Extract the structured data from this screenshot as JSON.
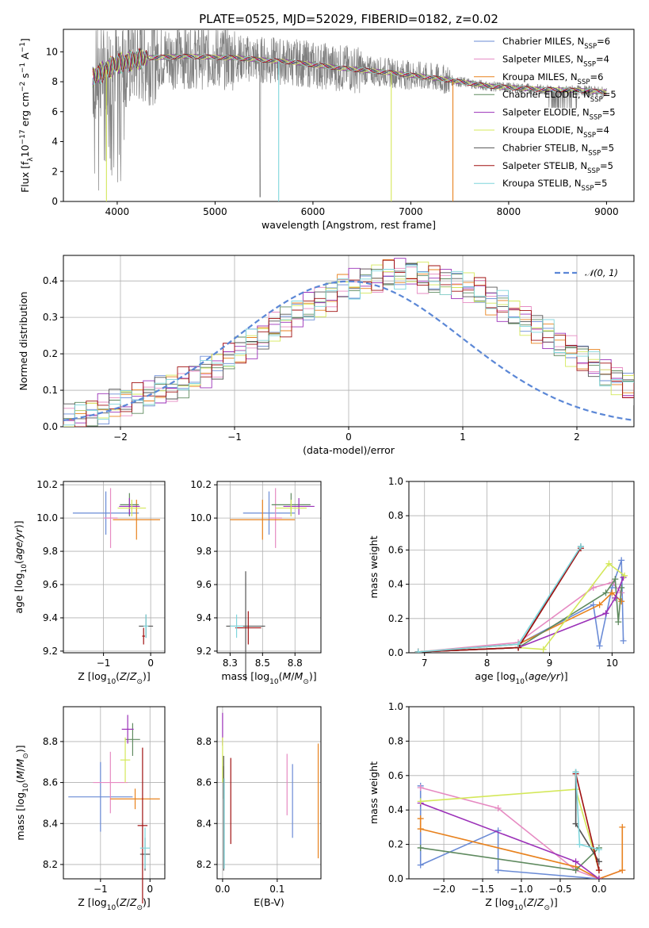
{
  "figure_title": "PLATE=0525, MJD=52029, FIBERID=0182, z=0.02",
  "colors": {
    "Chabrier MILES": "#6a8bd6",
    "Salpeter MILES": "#e68ac2",
    "Kroupa MILES": "#e8821e",
    "Chabrier ELODIE": "#5f8a5f",
    "Salpeter ELODIE": "#9b30b8",
    "Kroupa ELODIE": "#d4e85a",
    "Chabrier STELIB": "#555555",
    "Salpeter STELIB": "#a01010",
    "Kroupa STELIB": "#7fd6dc",
    "observed": "#808080",
    "gaussian": "#5b87d6"
  },
  "chart_data": [
    {
      "id": "spectrum",
      "type": "line",
      "xlabel": "wavelength [Angstrom, rest frame]",
      "ylabel": "Flux [f_λ10^-17 erg cm^-2 s^-1 A^-1]",
      "xlim": [
        3450,
        9280
      ],
      "ylim": [
        0,
        11.5
      ],
      "xticks": [
        4000,
        5000,
        6000,
        7000,
        8000,
        9000
      ],
      "yticks": [
        0,
        2,
        4,
        6,
        8,
        10
      ],
      "legend_position": "upper-right",
      "legend": [
        {
          "name": "Chabrier MILES, N_SSP=6",
          "pre": "Chabrier MILES, N",
          "sub": "SSP",
          "post": "=6"
        },
        {
          "name": "Salpeter MILES, N_SSP=4",
          "pre": "Salpeter MILES, N",
          "sub": "SSP",
          "post": "=4"
        },
        {
          "name": "Kroupa MILES, N_SSP=6",
          "pre": "Kroupa MILES, N",
          "sub": "SSP",
          "post": "=6"
        },
        {
          "name": "Chabrier ELODIE, N_SSP=5",
          "pre": "Chabrier ELODIE, N",
          "sub": "SSP",
          "post": "=5"
        },
        {
          "name": "Salpeter ELODIE, N_SSP=5",
          "pre": "Salpeter ELODIE, N",
          "sub": "SSP",
          "post": "=5"
        },
        {
          "name": "Kroupa ELODIE, N_SSP=4",
          "pre": "Kroupa ELODIE, N",
          "sub": "SSP",
          "post": "=4"
        },
        {
          "name": "Chabrier STELIB, N_SSP=5",
          "pre": "Chabrier STELIB, N",
          "sub": "SSP",
          "post": "=5"
        },
        {
          "name": "Salpeter STELIB, N_SSP=5",
          "pre": "Salpeter STELIB, N",
          "sub": "SSP",
          "post": "=5"
        },
        {
          "name": "Kroupa STELIB, N_SSP=5",
          "pre": "Kroupa STELIB, N",
          "sub": "SSP",
          "post": "=5"
        }
      ],
      "observed_continuum": [
        [
          3750,
          8.3
        ],
        [
          4000,
          9.2
        ],
        [
          4300,
          9.6
        ],
        [
          4700,
          9.7
        ],
        [
          5200,
          9.6
        ],
        [
          5800,
          9.3
        ],
        [
          6300,
          8.9
        ],
        [
          6800,
          8.6
        ],
        [
          7300,
          8.2
        ],
        [
          7800,
          7.7
        ],
        [
          8300,
          7.5
        ],
        [
          8800,
          7.4
        ],
        [
          9000,
          7.3
        ]
      ],
      "model_dropouts": {
        "Kroupa STELIB": 5650,
        "Kroupa ELODIE": 6800,
        "Kroupa MILES": 7430,
        "Kroupa ELODIE blue": 3890
      }
    },
    {
      "id": "residuals",
      "type": "bar",
      "xlabel": "(data-model)/error",
      "ylabel": "Normed distribution",
      "xlim": [
        -2.5,
        2.5
      ],
      "ylim": [
        0,
        0.47
      ],
      "xticks": [
        -2,
        -1,
        0,
        1,
        2
      ],
      "yticks": [
        0.0,
        0.1,
        0.2,
        0.3,
        0.4
      ],
      "legend_position": "upper-right",
      "legend": [
        {
          "name": "N(0,1)",
          "text": "𝒩(0, 1)"
        }
      ],
      "bin_width": 0.1,
      "bin_start": -2.5,
      "base_values": [
        0.02,
        0.03,
        0.04,
        0.05,
        0.06,
        0.07,
        0.08,
        0.09,
        0.1,
        0.11,
        0.12,
        0.14,
        0.15,
        0.17,
        0.19,
        0.21,
        0.23,
        0.25,
        0.27,
        0.29,
        0.31,
        0.33,
        0.34,
        0.36,
        0.38,
        0.39,
        0.4,
        0.41,
        0.42,
        0.42,
        0.42,
        0.41,
        0.4,
        0.4,
        0.39,
        0.38,
        0.37,
        0.35,
        0.33,
        0.31,
        0.29,
        0.27,
        0.25,
        0.23,
        0.21,
        0.19,
        0.17,
        0.15,
        0.13,
        0.11,
        0.1,
        0.09,
        0.08,
        0.07,
        0.06,
        0.055,
        0.05,
        0.045,
        0.04,
        0.035,
        0.03,
        0.025,
        0.02,
        0.015,
        0.01
      ]
    },
    {
      "id": "age-vs-Z",
      "type": "scatter",
      "xlabel": "Z [log10(Z/Z⊙)]",
      "ylabel": "age [log10(age/yr)]",
      "xlim": [
        -1.85,
        0.3
      ],
      "ylim": [
        9.19,
        10.22
      ],
      "xticks": [
        -1,
        0
      ],
      "yticks": [
        9.2,
        9.4,
        9.6,
        9.8,
        10.0,
        10.2
      ],
      "points": [
        {
          "series": "Chabrier MILES",
          "x": -0.95,
          "y": 10.03,
          "xerr": 0.7,
          "yerr": 0.13
        },
        {
          "series": "Salpeter MILES",
          "x": -0.85,
          "y": 10.0,
          "xerr": 0.15,
          "yerr": 0.18
        },
        {
          "series": "Kroupa MILES",
          "x": -0.3,
          "y": 9.99,
          "xerr": 0.5,
          "yerr": 0.12
        },
        {
          "series": "Chabrier ELODIE",
          "x": -0.45,
          "y": 10.08,
          "xerr": 0.2,
          "yerr": 0.07
        },
        {
          "series": "Salpeter ELODIE",
          "x": -0.45,
          "y": 10.07,
          "xerr": 0.22,
          "yerr": 0.05
        },
        {
          "series": "Kroupa ELODIE",
          "x": -0.4,
          "y": 10.06,
          "xerr": 0.3,
          "yerr": 0.05
        },
        {
          "series": "Chabrier STELIB",
          "x": -0.1,
          "y": 9.35,
          "xerr": 0.15,
          "yerr": 0.07
        },
        {
          "series": "Salpeter STELIB",
          "x": -0.15,
          "y": 9.29,
          "xerr": 0.03,
          "yerr": 0.05
        },
        {
          "series": "Kroupa STELIB",
          "x": -0.1,
          "y": 9.35,
          "xerr": 0.05,
          "yerr": 0.07
        }
      ]
    },
    {
      "id": "age-vs-mass",
      "type": "scatter",
      "xlabel": "mass [log10(M/M⊙)]",
      "ylabel": "",
      "xlim": [
        8.15,
        8.95
      ],
      "ylim": [
        9.19,
        10.22
      ],
      "xticks": [
        8.25,
        8.5,
        8.75
      ],
      "yticks": [
        9.2,
        9.4,
        9.6,
        9.8,
        10.0,
        10.2
      ],
      "points": [
        {
          "series": "Chabrier MILES",
          "x": 8.55,
          "y": 10.03,
          "xerr": 0.2,
          "yerr": 0.13
        },
        {
          "series": "Salpeter MILES",
          "x": 8.6,
          "y": 10.0,
          "xerr": 0.05,
          "yerr": 0.18
        },
        {
          "series": "Kroupa MILES",
          "x": 8.5,
          "y": 9.99,
          "xerr": 0.25,
          "yerr": 0.12
        },
        {
          "series": "Chabrier ELODIE",
          "x": 8.72,
          "y": 10.08,
          "xerr": 0.15,
          "yerr": 0.07
        },
        {
          "series": "Salpeter ELODIE",
          "x": 8.78,
          "y": 10.07,
          "xerr": 0.12,
          "yerr": 0.05
        },
        {
          "series": "Kroupa ELODIE",
          "x": 8.72,
          "y": 10.06,
          "xerr": 0.12,
          "yerr": 0.05
        },
        {
          "series": "Chabrier STELIB",
          "x": 8.37,
          "y": 9.35,
          "xerr": 0.15,
          "yerr": 0.33
        },
        {
          "series": "Salpeter STELIB",
          "x": 8.39,
          "y": 9.34,
          "xerr": 0.1,
          "yerr": 0.1
        },
        {
          "series": "Kroupa STELIB",
          "x": 8.3,
          "y": 9.35,
          "xerr": 0.05,
          "yerr": 0.07
        }
      ]
    },
    {
      "id": "weight-vs-age",
      "type": "line",
      "xlabel": "age [log10(age/yr)]",
      "ylabel": "mass weight",
      "xlim": [
        6.75,
        10.35
      ],
      "ylim": [
        0,
        1.0
      ],
      "xticks": [
        7,
        8,
        9,
        10
      ],
      "yticks": [
        0.0,
        0.2,
        0.4,
        0.6,
        0.8,
        1.0
      ],
      "series": [
        {
          "name": "Chabrier MILES",
          "points": [
            [
              6.9,
              0.005
            ],
            [
              8.5,
              0.05
            ],
            [
              9.7,
              0.28
            ],
            [
              9.8,
              0.04
            ],
            [
              10.0,
              0.38
            ],
            [
              10.15,
              0.54
            ],
            [
              10.18,
              0.07
            ]
          ]
        },
        {
          "name": "Salpeter MILES",
          "points": [
            [
              6.9,
              0.005
            ],
            [
              8.5,
              0.06
            ],
            [
              9.7,
              0.38
            ],
            [
              10.0,
              0.41
            ],
            [
              10.15,
              0.35
            ]
          ]
        },
        {
          "name": "Kroupa MILES",
          "points": [
            [
              6.9,
              0.005
            ],
            [
              8.5,
              0.05
            ],
            [
              9.8,
              0.28
            ],
            [
              10.0,
              0.35
            ],
            [
              10.15,
              0.3
            ]
          ]
        },
        {
          "name": "Chabrier ELODIE",
          "points": [
            [
              6.9,
              0.005
            ],
            [
              8.5,
              0.03
            ],
            [
              9.9,
              0.35
            ],
            [
              10.05,
              0.43
            ],
            [
              10.1,
              0.18
            ],
            [
              10.15,
              0.38
            ]
          ]
        },
        {
          "name": "Salpeter ELODIE",
          "points": [
            [
              6.9,
              0.005
            ],
            [
              8.5,
              0.03
            ],
            [
              9.9,
              0.23
            ],
            [
              10.05,
              0.32
            ],
            [
              10.18,
              0.44
            ]
          ]
        },
        {
          "name": "Kroupa ELODIE",
          "points": [
            [
              6.9,
              0.005
            ],
            [
              8.5,
              0.03
            ],
            [
              8.9,
              0.02
            ],
            [
              9.95,
              0.52
            ],
            [
              10.2,
              0.45
            ]
          ]
        },
        {
          "name": "Chabrier STELIB",
          "points": [
            [
              6.9,
              0.005
            ],
            [
              8.5,
              0.03
            ],
            [
              9.5,
              0.62
            ]
          ]
        },
        {
          "name": "Salpeter STELIB",
          "points": [
            [
              6.9,
              0.005
            ],
            [
              8.5,
              0.03
            ],
            [
              9.5,
              0.61
            ]
          ]
        },
        {
          "name": "Kroupa STELIB",
          "points": [
            [
              6.9,
              0.005
            ],
            [
              8.5,
              0.05
            ],
            [
              9.5,
              0.62
            ]
          ]
        }
      ]
    },
    {
      "id": "mass-vs-Z",
      "type": "scatter",
      "xlabel": "Z [log10(Z/Z⊙)]",
      "ylabel": "mass [log10(M/M⊙)]",
      "xlim": [
        -1.75,
        0.3
      ],
      "ylim": [
        8.13,
        8.97
      ],
      "xticks": [
        -1,
        0
      ],
      "yticks": [
        8.2,
        8.4,
        8.6,
        8.8
      ],
      "points": [
        {
          "series": "Chabrier MILES",
          "x": -1.0,
          "y": 8.53,
          "xerr": 0.65,
          "yerr": 0.17
        },
        {
          "series": "Salpeter MILES",
          "x": -0.8,
          "y": 8.6,
          "xerr": 0.35,
          "yerr": 0.15
        },
        {
          "series": "Kroupa MILES",
          "x": -0.3,
          "y": 8.52,
          "xerr": 0.5,
          "yerr": 0.05
        },
        {
          "series": "Chabrier ELODIE",
          "x": -0.35,
          "y": 8.81,
          "xerr": 0.15,
          "yerr": 0.08
        },
        {
          "series": "Salpeter ELODIE",
          "x": -0.45,
          "y": 8.86,
          "xerr": 0.12,
          "yerr": 0.07
        },
        {
          "series": "Kroupa ELODIE",
          "x": -0.5,
          "y": 8.71,
          "xerr": 0.1,
          "yerr": 0.11
        },
        {
          "series": "Chabrier STELIB",
          "x": -0.1,
          "y": 8.25,
          "xerr": 0.1,
          "yerr": 0.08
        },
        {
          "series": "Salpeter STELIB",
          "x": -0.15,
          "y": 8.39,
          "xerr": 0.1,
          "yerr": 0.38
        },
        {
          "series": "Kroupa STELIB",
          "x": -0.1,
          "y": 8.28,
          "xerr": 0.1,
          "yerr": 0.1
        }
      ]
    },
    {
      "id": "mass-vs-EBV",
      "type": "scatter",
      "xlabel": "E(B-V)",
      "ylabel": "",
      "xlim": [
        -0.01,
        0.18
      ],
      "ylim": [
        8.13,
        8.97
      ],
      "xticks": [
        0.0,
        0.1
      ],
      "yticks": [
        8.2,
        8.4,
        8.6,
        8.8
      ],
      "points": [
        {
          "series": "Chabrier MILES",
          "x": 0.128,
          "y": 8.51,
          "xerr": 0,
          "yerr": 0.18
        },
        {
          "series": "Salpeter MILES",
          "x": 0.118,
          "y": 8.59,
          "xerr": 0,
          "yerr": 0.15
        },
        {
          "series": "Kroupa MILES",
          "x": 0.175,
          "y": 8.51,
          "xerr": 0,
          "yerr": 0.28
        },
        {
          "series": "Chabrier ELODIE",
          "x": 0.002,
          "y": 8.6,
          "xerr": 0,
          "yerr": 0.08
        },
        {
          "series": "Salpeter ELODIE",
          "x": 0.0,
          "y": 8.86,
          "xerr": 0,
          "yerr": 0.08
        },
        {
          "series": "Kroupa ELODIE",
          "x": 0.0,
          "y": 8.71,
          "xerr": 0,
          "yerr": 0.11
        },
        {
          "series": "Chabrier STELIB",
          "x": 0.002,
          "y": 8.45,
          "xerr": 0,
          "yerr": 0.28
        },
        {
          "series": "Salpeter STELIB",
          "x": 0.015,
          "y": 8.51,
          "xerr": 0,
          "yerr": 0.21
        },
        {
          "series": "Kroupa STELIB",
          "x": 0.003,
          "y": 8.4,
          "xerr": 0,
          "yerr": 0.22
        }
      ]
    },
    {
      "id": "weight-vs-Z",
      "type": "line",
      "xlabel": "Z [log10(Z/Z⊙)]",
      "ylabel": "mass weight",
      "xlim": [
        -2.45,
        0.45
      ],
      "ylim": [
        0,
        1.0
      ],
      "xticks": [
        -2.0,
        -1.5,
        -1.0,
        -0.5,
        0.0
      ],
      "yticks": [
        0.0,
        0.2,
        0.4,
        0.6,
        0.8,
        1.0
      ],
      "series": [
        {
          "name": "Chabrier MILES",
          "points": [
            [
              -2.3,
              0.54
            ],
            [
              -2.3,
              0.08
            ],
            [
              -1.3,
              0.28
            ],
            [
              -1.3,
              0.05
            ],
            [
              0.0,
              0.0
            ]
          ]
        },
        {
          "name": "Salpeter MILES",
          "points": [
            [
              -2.3,
              0.53
            ],
            [
              -1.3,
              0.41
            ],
            [
              -0.3,
              0.05
            ],
            [
              0.0,
              0.0
            ],
            [
              0.3,
              0.05
            ]
          ]
        },
        {
          "name": "Kroupa MILES",
          "points": [
            [
              -2.3,
              0.35
            ],
            [
              -2.3,
              0.29
            ],
            [
              -0.3,
              0.07
            ],
            [
              0.0,
              0.0
            ],
            [
              0.3,
              0.05
            ],
            [
              0.3,
              0.3
            ]
          ]
        },
        {
          "name": "Chabrier ELODIE",
          "points": [
            [
              -2.3,
              0.18
            ],
            [
              -0.3,
              0.05
            ],
            [
              0.0,
              0.18
            ]
          ]
        },
        {
          "name": "Salpeter ELODIE",
          "points": [
            [
              -2.3,
              0.44
            ],
            [
              -0.3,
              0.1
            ],
            [
              0.0,
              0.0
            ]
          ]
        },
        {
          "name": "Kroupa ELODIE",
          "points": [
            [
              -2.3,
              0.45
            ],
            [
              -0.3,
              0.52
            ],
            [
              0.0,
              0.05
            ]
          ]
        },
        {
          "name": "Chabrier STELIB",
          "points": [
            [
              -0.3,
              0.62
            ],
            [
              -0.3,
              0.32
            ],
            [
              0.0,
              0.1
            ]
          ]
        },
        {
          "name": "Salpeter STELIB",
          "points": [
            [
              -0.3,
              0.61
            ],
            [
              0.0,
              0.05
            ]
          ]
        },
        {
          "name": "Kroupa STELIB",
          "points": [
            [
              -0.3,
              0.62
            ],
            [
              -0.25,
              0.2
            ],
            [
              0.0,
              0.17
            ]
          ]
        }
      ]
    }
  ]
}
